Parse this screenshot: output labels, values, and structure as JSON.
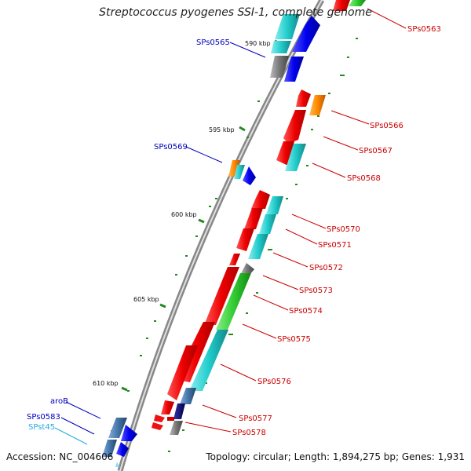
{
  "title": "Streptococcus pyogenes SSI-1, complete genome",
  "accession": "Accession: NC_004606",
  "summary": "Topology: circular; Length: 1,894,275 bp; Genes: 1,931",
  "colors": {
    "red": "#ee1111",
    "cyan": "#22cccc",
    "blue": "#1111ee",
    "orange": "#ff8800",
    "gray": "#777777",
    "green": "#33cc33",
    "steel": "#4477aa",
    "navy": "#000066",
    "backbone": "#999999"
  },
  "kbp_ticks": [
    "590 kbp",
    "595 kbp",
    "600 kbp",
    "605 kbp",
    "610 kbp"
  ],
  "genes": {
    "sps0563": "SPs0563",
    "sps0565": "SPs0565",
    "sps0566": "SPs0566",
    "sps0567": "SPs0567",
    "sps0568": "SPs0568",
    "sps0569": "SPs0569",
    "sps0570": "SPs0570",
    "sps0571": "SPs0571",
    "sps0572": "SPs0572",
    "sps0573": "SPs0573",
    "sps0574": "SPs0574",
    "sps0575": "SPs0575",
    "sps0576": "SPs0576",
    "sps0577": "SPs0577",
    "sps0578": "SPs0578",
    "arob": "aroB",
    "sps0583": "SPs0583",
    "spst45": "SPst45"
  }
}
